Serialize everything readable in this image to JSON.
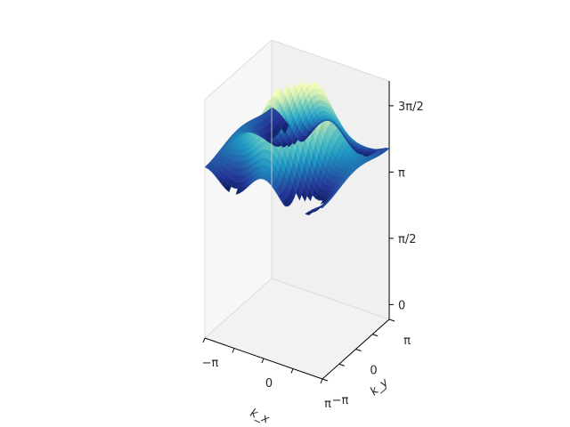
{
  "chart_data": {
    "type": "surface3d",
    "colormap": "YlGnBu",
    "title": "",
    "xlabel": "k_x",
    "ylabel": "k_y",
    "zlabel": "",
    "xlim": [
      -3.14159,
      3.14159
    ],
    "ylim": [
      -3.14159,
      3.14159
    ],
    "zlim": [
      -0.35,
      5.3
    ],
    "x_ticks": [
      {
        "value": -3.14159,
        "label": "−π"
      },
      {
        "value": 0,
        "label": "0"
      },
      {
        "value": 3.14159,
        "label": "π"
      }
    ],
    "y_ticks": [
      {
        "value": -3.14159,
        "label": "−π"
      },
      {
        "value": 0,
        "label": "0"
      },
      {
        "value": 3.14159,
        "label": "π"
      }
    ],
    "z_ticks": [
      {
        "value": 0,
        "label": "0"
      },
      {
        "value": 1.5708,
        "label": "π/2"
      },
      {
        "value": 3.14159,
        "label": "π"
      },
      {
        "value": 4.7124,
        "label": "3π/2"
      }
    ],
    "surface_z_range": [
      3.3,
      5.3
    ],
    "pane_colors": {
      "left": "#f7f7f7",
      "right": "#f0f0f0",
      "floor": "#f2f2f2"
    },
    "grid": false
  }
}
